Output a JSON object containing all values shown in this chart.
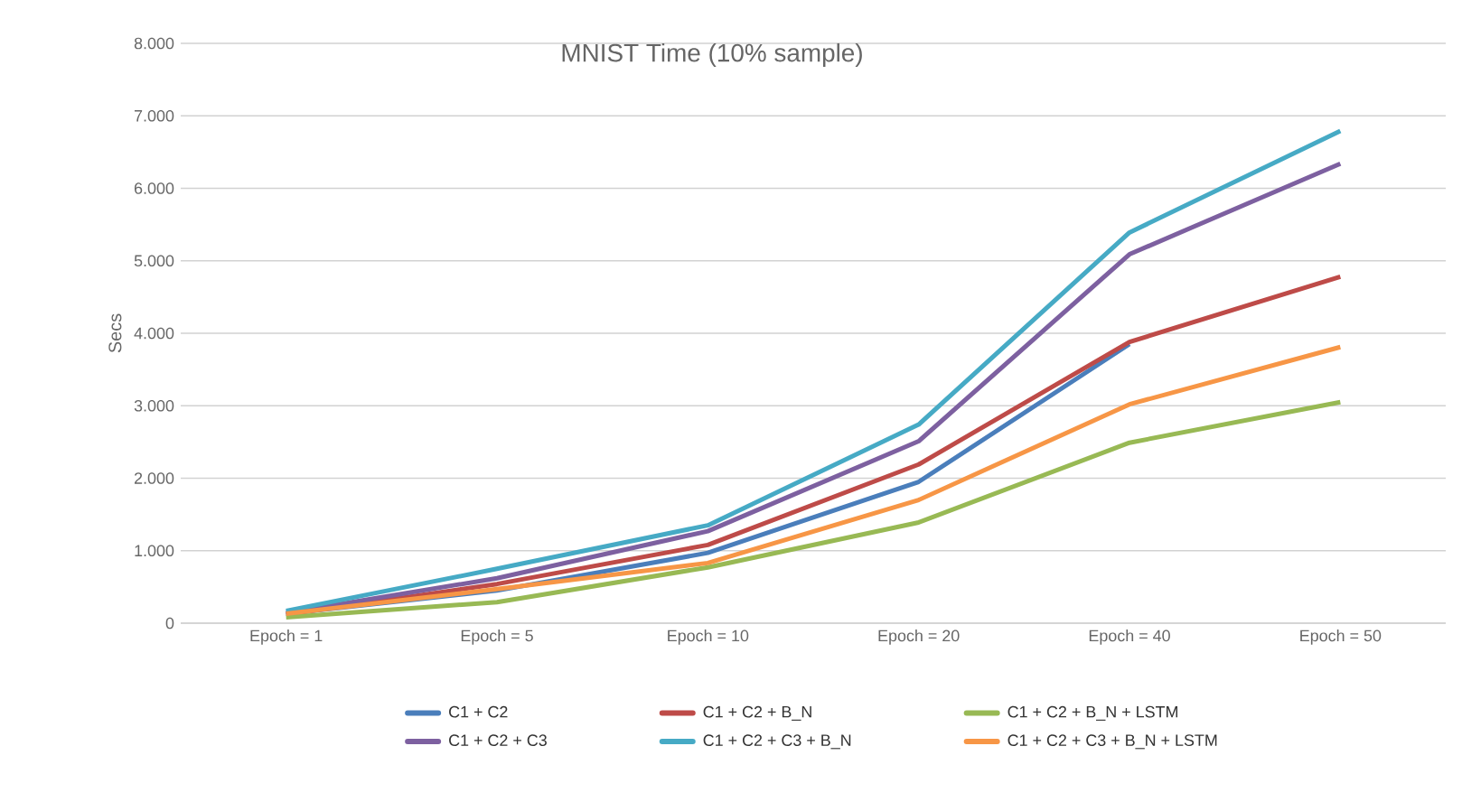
{
  "chart_data": {
    "type": "line",
    "title": "MNIST Time (10% sample)",
    "ylabel": "Secs",
    "categories": [
      "Epoch = 1",
      "Epoch = 5",
      "Epoch = 10",
      "Epoch = 20",
      "Epoch = 40",
      "Epoch = 50"
    ],
    "series": [
      {
        "name": "C1 + C2",
        "color": "#4a7ebb",
        "values": [
          130,
          450,
          970,
          1950,
          3850,
          null
        ]
      },
      {
        "name": "C1 + C2 + B_N",
        "color": "#be4b48",
        "values": [
          120,
          540,
          1080,
          2190,
          3880,
          4780
        ]
      },
      {
        "name": "C1 + C2 + B_N + LSTM",
        "color": "#98b954",
        "values": [
          80,
          290,
          770,
          1390,
          2490,
          3050
        ]
      },
      {
        "name": "C1 + C2 + C3",
        "color": "#7d60a0",
        "values": [
          140,
          620,
          1270,
          2510,
          5090,
          6340
        ]
      },
      {
        "name": "C1 + C2 + C3 + B_N",
        "color": "#46aac5",
        "values": [
          170,
          750,
          1350,
          2740,
          5390,
          6790
        ]
      },
      {
        "name": "C1 + C2 + C3 + B_N + LSTM",
        "color": "#f79646",
        "values": [
          130,
          470,
          830,
          1700,
          3020,
          3810
        ]
      }
    ],
    "ylim": [
      0,
      8000
    ],
    "yticks": [
      0,
      {
        "value": 1000,
        "label": "1.000"
      },
      {
        "value": 2000,
        "label": "2.000"
      },
      {
        "value": 3000,
        "label": "3.000"
      },
      {
        "value": 4000,
        "label": "4.000"
      },
      {
        "value": 5000,
        "label": "5.000"
      },
      {
        "value": 6000,
        "label": "6.000"
      },
      {
        "value": 7000,
        "label": "7.000"
      },
      {
        "value": 8000,
        "label": "8.000"
      }
    ],
    "grid": "y",
    "legend": "bottom",
    "marker": "none",
    "line_style": "solid"
  }
}
